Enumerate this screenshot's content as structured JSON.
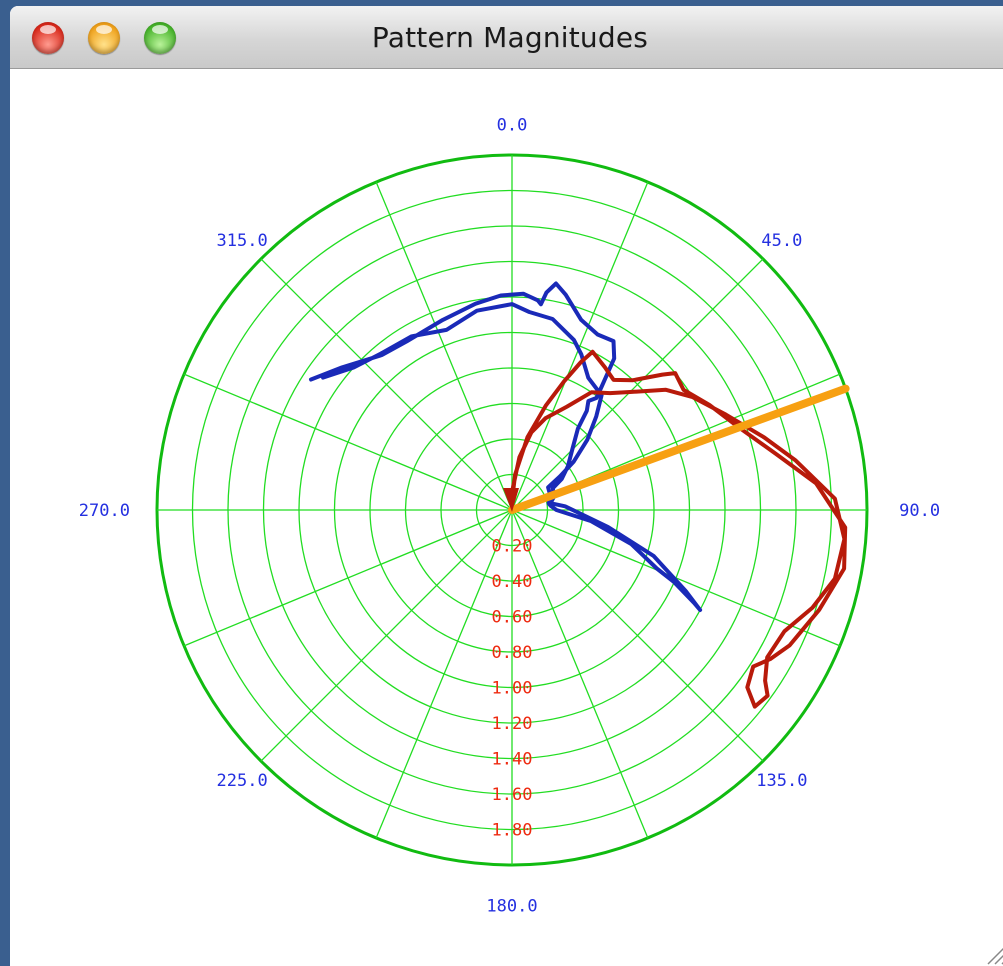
{
  "window": {
    "title": "Pattern Magnitudes"
  },
  "chart_data": {
    "type": "polar",
    "angular_tick_labels": [
      "0.0",
      "45.0",
      "90.0",
      "135.0",
      "180.0",
      "225.0",
      "270.0",
      "315.0"
    ],
    "radial_tick_labels": [
      "0.20",
      "0.40",
      "0.60",
      "0.80",
      "1.00",
      "1.20",
      "1.40",
      "1.60",
      "1.80"
    ],
    "r_range": [
      0,
      2.0
    ],
    "angular_direction": "clockwise from top",
    "grid": true,
    "grid_spokes_deg": 22.5,
    "series": [
      {
        "color": "#1a2ab8",
        "points_theta_r": [
          [
            303,
            1.35
          ],
          [
            310,
            1.25
          ],
          [
            320,
            1.14
          ],
          [
            328,
            1.12
          ],
          [
            340,
            1.14
          ],
          [
            350,
            1.18
          ],
          [
            357,
            1.21
          ],
          [
            3,
            1.22
          ],
          [
            7,
            1.19
          ],
          [
            8,
            1.17
          ],
          [
            9,
            1.24
          ],
          [
            11,
            1.3
          ],
          [
            14,
            1.25
          ],
          [
            20,
            1.14
          ],
          [
            26,
            1.1
          ],
          [
            31,
            1.11
          ],
          [
            34,
            1.03
          ],
          [
            36,
            0.86
          ],
          [
            37,
            0.79
          ],
          [
            35,
            0.75
          ],
          [
            37,
            0.7
          ],
          [
            39,
            0.59
          ],
          [
            45,
            0.48
          ],
          [
            52,
            0.4
          ],
          [
            58,
            0.33
          ],
          [
            62,
            0.26
          ],
          [
            72,
            0.25
          ],
          [
            80,
            0.22
          ],
          [
            86,
            0.3
          ],
          [
            100,
            0.55
          ],
          [
            108,
            0.84
          ],
          [
            115,
            1.08
          ],
          [
            118,
            1.2
          ],
          [
            117,
            1.15
          ],
          [
            114,
            1.0
          ],
          [
            112,
            0.88
          ],
          [
            106,
            0.7
          ],
          [
            98,
            0.45
          ],
          [
            90,
            0.25
          ],
          [
            84,
            0.22
          ],
          [
            80,
            0.21
          ],
          [
            70,
            0.23
          ],
          [
            58,
            0.24
          ],
          [
            55,
            0.33
          ],
          [
            52,
            0.44
          ],
          [
            47,
            0.58
          ],
          [
            42,
            0.71
          ],
          [
            38,
            0.82
          ],
          [
            30,
            0.86
          ],
          [
            24,
            0.96
          ],
          [
            20,
            1.02
          ],
          [
            12,
            1.1
          ],
          [
            5,
            1.12
          ],
          [
            0,
            1.16
          ],
          [
            350,
            1.14
          ],
          [
            340,
            1.08
          ],
          [
            330,
            1.13
          ],
          [
            320,
            1.15
          ],
          [
            312,
            1.2
          ],
          [
            305,
            1.3
          ]
        ]
      },
      {
        "color": "#b81a0a",
        "points_theta_r": [
          [
            0,
            0.05
          ],
          [
            5,
            0.2
          ],
          [
            12,
            0.42
          ],
          [
            18,
            0.62
          ],
          [
            22,
            0.78
          ],
          [
            25,
            0.92
          ],
          [
            27,
            1.0
          ],
          [
            33,
            0.96
          ],
          [
            38,
            0.93
          ],
          [
            43,
            1.0
          ],
          [
            48,
            1.14
          ],
          [
            50,
            1.2
          ],
          [
            55,
            1.18
          ],
          [
            62,
            1.26
          ],
          [
            70,
            1.36
          ],
          [
            78,
            1.52
          ],
          [
            85,
            1.72
          ],
          [
            93,
            1.88
          ],
          [
            100,
            1.9
          ],
          [
            108,
            1.82
          ],
          [
            116,
            1.74
          ],
          [
            120,
            1.68
          ],
          [
            123,
            1.62
          ],
          [
            127,
            1.66
          ],
          [
            129,
            1.76
          ],
          [
            126,
            1.78
          ],
          [
            124,
            1.72
          ],
          [
            120,
            1.66
          ],
          [
            114,
            1.68
          ],
          [
            108,
            1.78
          ],
          [
            102,
            1.86
          ],
          [
            95,
            1.88
          ],
          [
            88,
            1.82
          ],
          [
            80,
            1.62
          ],
          [
            74,
            1.48
          ],
          [
            66,
            1.32
          ],
          [
            58,
            1.2
          ],
          [
            52,
            1.1
          ],
          [
            45,
            0.94
          ],
          [
            40,
            0.86
          ],
          [
            34,
            0.8
          ],
          [
            28,
            0.66
          ],
          [
            20,
            0.55
          ],
          [
            14,
            0.45
          ],
          [
            8,
            0.3
          ],
          [
            2,
            0.12
          ],
          [
            0,
            0.03
          ]
        ]
      },
      {
        "color": "#f7a012",
        "points_theta_r": [
          [
            0,
            0.0
          ],
          [
            70,
            2.0
          ]
        ]
      }
    ]
  }
}
